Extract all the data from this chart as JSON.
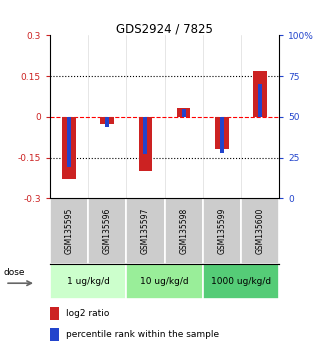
{
  "title": "GDS2924 / 7825",
  "samples": [
    "GSM135595",
    "GSM135596",
    "GSM135597",
    "GSM135598",
    "GSM135599",
    "GSM135600"
  ],
  "log2_ratios": [
    -0.228,
    -0.028,
    -0.2,
    0.032,
    -0.118,
    0.17
  ],
  "percentile_ranks": [
    19,
    44,
    27,
    55,
    28,
    70
  ],
  "bar_color_red": "#cc2222",
  "bar_color_blue": "#2244cc",
  "ylim_left": [
    -0.3,
    0.3
  ],
  "ylim_right": [
    0,
    100
  ],
  "yticks_left": [
    -0.3,
    -0.15,
    0,
    0.15,
    0.3
  ],
  "yticks_right": [
    0,
    25,
    50,
    75,
    100
  ],
  "ytick_labels_left": [
    "-0.3",
    "-0.15",
    "0",
    "0.15",
    "0.3"
  ],
  "ytick_labels_right": [
    "0",
    "25",
    "50",
    "75",
    "100%"
  ],
  "dose_groups": [
    {
      "label": "1 ug/kg/d",
      "start": 0,
      "end": 1,
      "color": "#ccffcc"
    },
    {
      "label": "10 ug/kg/d",
      "start": 2,
      "end": 3,
      "color": "#99ee99"
    },
    {
      "label": "1000 ug/kg/d",
      "start": 4,
      "end": 5,
      "color": "#55cc77"
    }
  ],
  "sample_bg": "#cccccc",
  "dose_label": "dose",
  "legend_red": "log2 ratio",
  "legend_blue": "percentile rank within the sample",
  "bar_width": 0.35,
  "blue_bar_width": 0.1
}
